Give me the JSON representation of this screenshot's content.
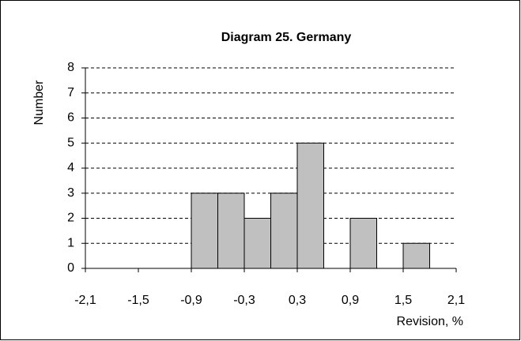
{
  "chart_data": {
    "type": "histogram",
    "title": "Diagram 25.  Germany",
    "xlabel": "Revision, %",
    "ylabel": "Number",
    "bins": [
      -2.1,
      -1.8,
      -1.5,
      -1.2,
      -0.9,
      -0.6,
      -0.3,
      0,
      0.3,
      0.6,
      0.9,
      1.2,
      1.5,
      1.8,
      2.1
    ],
    "values": [
      0,
      0,
      0,
      0,
      3,
      3,
      2,
      3,
      5,
      0,
      2,
      0,
      1,
      0
    ],
    "color": "#c0c0c0",
    "xlim": [
      -2.1,
      2.1
    ],
    "xticks": [
      {
        "value": -2.1,
        "label": "-2,1"
      },
      {
        "value": -1.5,
        "label": "-1,5"
      },
      {
        "value": -0.9,
        "label": "-0,9"
      },
      {
        "value": -0.3,
        "label": "-0,3"
      },
      {
        "value": 0.3,
        "label": "0,3"
      },
      {
        "value": 0.9,
        "label": "0,9"
      },
      {
        "value": 1.5,
        "label": "1,5"
      },
      {
        "value": 2.1,
        "label": "2,1"
      }
    ],
    "ylim": [
      0,
      8
    ],
    "yticks": [
      0,
      1,
      2,
      3,
      4,
      5,
      6,
      7,
      8
    ],
    "grid": true
  }
}
